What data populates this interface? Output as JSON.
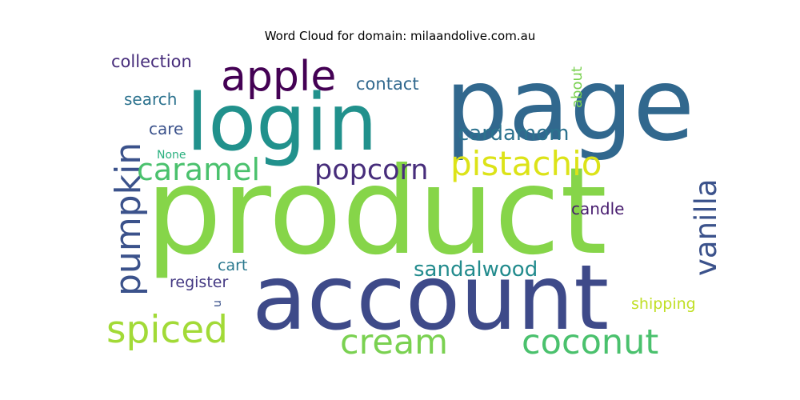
{
  "title": "Word Cloud for domain: milaandolive.com.au",
  "words": [
    {
      "text": "product",
      "color": "#86d549"
    },
    {
      "text": "page",
      "color": "#31688e"
    },
    {
      "text": "account",
      "color": "#3e4a89"
    },
    {
      "text": "login",
      "color": "#21918c"
    },
    {
      "text": "apple",
      "color": "#440154"
    },
    {
      "text": "pistachio",
      "color": "#dce318"
    },
    {
      "text": "pumpkin",
      "color": "#3b528b"
    },
    {
      "text": "caramel",
      "color": "#4ac16d"
    },
    {
      "text": "popcorn",
      "color": "#472d7b"
    },
    {
      "text": "vanilla",
      "color": "#3b528b"
    },
    {
      "text": "spiced",
      "color": "#a2da37"
    },
    {
      "text": "coconut",
      "color": "#4ac16d"
    },
    {
      "text": "cream",
      "color": "#7ad151"
    },
    {
      "text": "cardamom",
      "color": "#2c728e"
    },
    {
      "text": "sandalwood",
      "color": "#228b8d"
    },
    {
      "text": "collection",
      "color": "#472d7b"
    },
    {
      "text": "contact",
      "color": "#31688e"
    },
    {
      "text": "search",
      "color": "#2c728e"
    },
    {
      "text": "care",
      "color": "#3b528b"
    },
    {
      "text": "about",
      "color": "#7ad151"
    },
    {
      "text": "candle",
      "color": "#481d6f"
    },
    {
      "text": "cart",
      "color": "#2a788e"
    },
    {
      "text": "register",
      "color": "#443983"
    },
    {
      "text": "shipping",
      "color": "#c0df25"
    },
    {
      "text": "None",
      "color": "#2ab07f"
    },
    {
      "text": "u",
      "color": "#3b528b"
    }
  ]
}
